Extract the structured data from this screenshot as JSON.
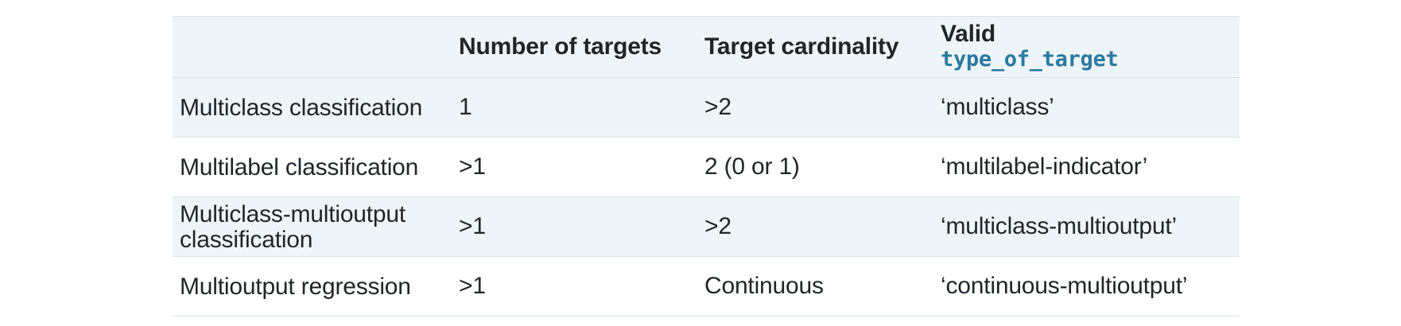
{
  "table": {
    "headers": {
      "task": "",
      "num_targets": "Number of targets",
      "cardinality": "Target cardinality",
      "valid_label": "Valid",
      "valid_code": "type_of_target"
    },
    "rows": [
      {
        "task": "Multiclass classification",
        "num_targets": "1",
        "cardinality": ">2",
        "valid": "‘multiclass’"
      },
      {
        "task": "Multilabel classification",
        "num_targets": ">1",
        "cardinality": "2 (0 or 1)",
        "valid": "‘multilabel-indicator’"
      },
      {
        "task": "Multiclass-multioutput classification",
        "num_targets": ">1",
        "cardinality": ">2",
        "valid": "‘multiclass-multioutput’"
      },
      {
        "task": "Multioutput regression",
        "num_targets": ">1",
        "cardinality": "Continuous",
        "valid": "‘continuous-multioutput’"
      }
    ]
  },
  "colors": {
    "shaded_row": "#eef5f9",
    "border": "#d9e1e6",
    "code_text": "#2b7aa0",
    "body_text": "#212529"
  }
}
